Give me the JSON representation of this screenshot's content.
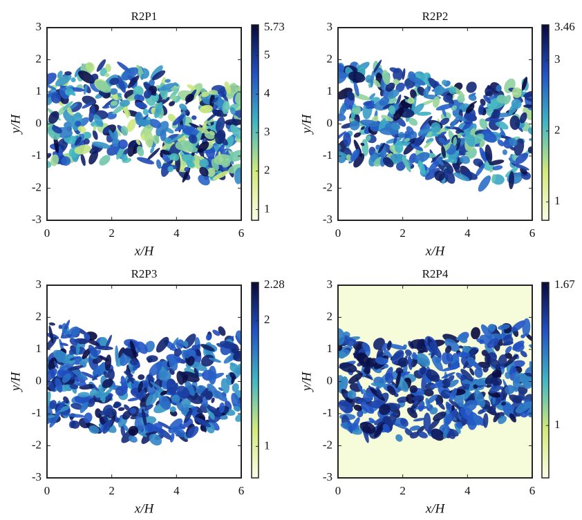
{
  "chart_data": [
    {
      "type": "heatmap",
      "title": "R2P1",
      "xlabel": "x/H",
      "ylabel": "y/H",
      "xlim": [
        0,
        6
      ],
      "xticks": [
        0,
        2,
        4,
        6
      ],
      "ylim": [
        -3,
        3
      ],
      "yticks": [
        -3,
        -2,
        -1,
        0,
        1,
        2,
        3
      ],
      "clim": [
        0.72,
        5.73
      ],
      "cticks": [
        1,
        2,
        3,
        4,
        5,
        5.73
      ],
      "colormap": [
        "#fbfde6",
        "#d2ea7c",
        "#41b6c4",
        "#2252c6",
        "#08083a"
      ]
    },
    {
      "type": "heatmap",
      "title": "R2P2",
      "xlabel": "x/H",
      "ylabel": "y/H",
      "xlim": [
        0,
        6
      ],
      "xticks": [
        0,
        2,
        4,
        6
      ],
      "ylim": [
        -3,
        3
      ],
      "yticks": [
        -3,
        -2,
        -1,
        0,
        1,
        2,
        3
      ],
      "clim": [
        0.74,
        3.46
      ],
      "cticks": [
        1,
        2,
        3,
        3.46
      ],
      "colormap": [
        "#fbfde6",
        "#d2ea7c",
        "#41b6c4",
        "#2252c6",
        "#08083a"
      ]
    },
    {
      "type": "heatmap",
      "title": "R2P3",
      "xlabel": "x/H",
      "ylabel": "y/H",
      "xlim": [
        0,
        6
      ],
      "xticks": [
        0,
        2,
        4,
        6
      ],
      "ylim": [
        -3,
        3
      ],
      "yticks": [
        -3,
        -2,
        -1,
        0,
        1,
        2,
        3
      ],
      "clim": [
        0.75,
        2.28
      ],
      "cticks": [
        1,
        2,
        2.28
      ],
      "colormap": [
        "#fbfde6",
        "#d2ea7c",
        "#41b6c4",
        "#2252c6",
        "#08083a"
      ]
    },
    {
      "type": "heatmap",
      "title": "R2P4",
      "xlabel": "x/H",
      "ylabel": "y/H",
      "xlim": [
        0,
        6
      ],
      "xticks": [
        0,
        2,
        4,
        6
      ],
      "ylim": [
        -3,
        3
      ],
      "yticks": [
        -3,
        -2,
        -1,
        0,
        1,
        2,
        3
      ],
      "clim": [
        0.75,
        1.67
      ],
      "cticks": [
        1,
        1.67
      ],
      "colormap": [
        "#fbfde6",
        "#d2ea7c",
        "#41b6c4",
        "#2252c6",
        "#08083a"
      ]
    }
  ]
}
